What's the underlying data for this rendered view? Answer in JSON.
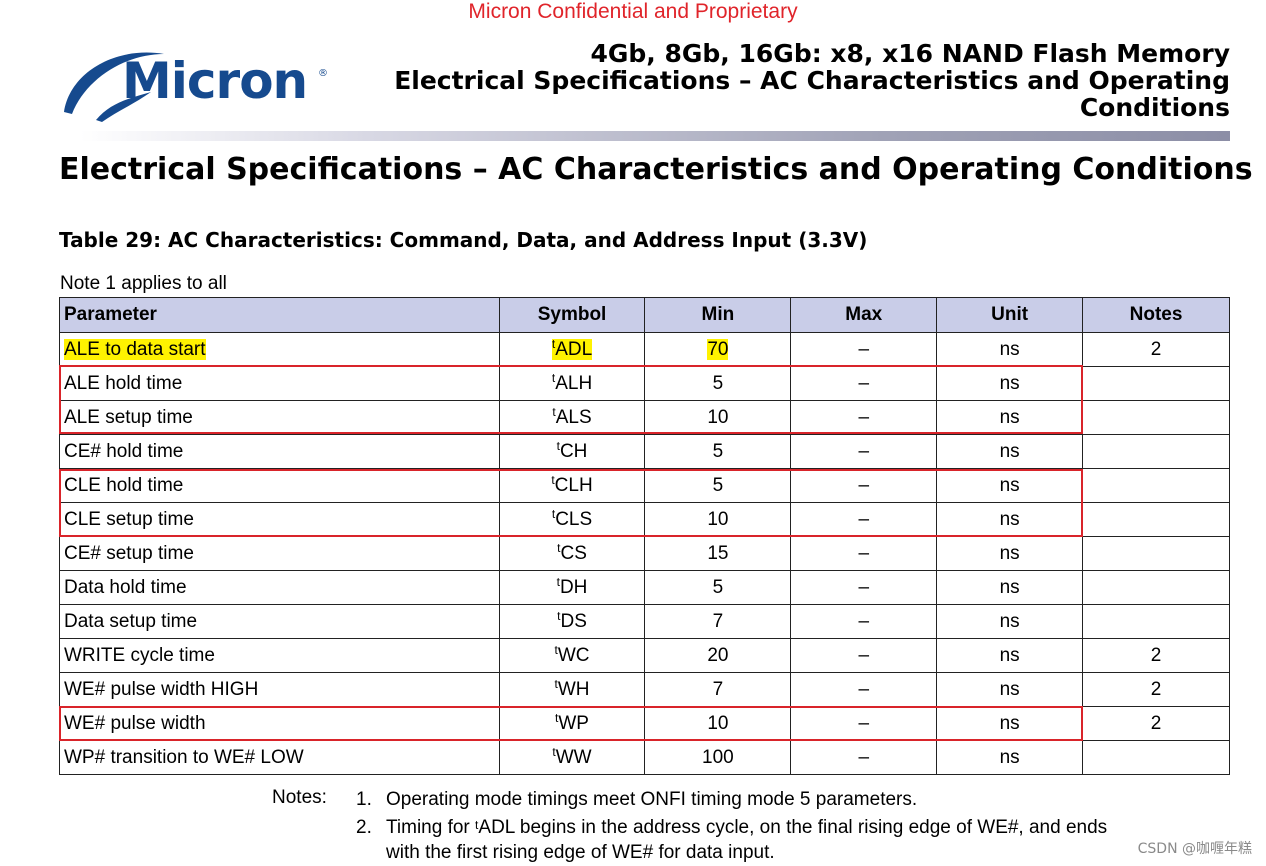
{
  "confidential": "Micron Confidential and Proprietary",
  "logo": {
    "text": "Micron",
    "trademark": "®"
  },
  "header": {
    "line1": "4Gb, 8Gb, 16Gb: x8, x16 NAND Flash Memory",
    "line2": "Electrical Specifications – AC Characteristics and Operating",
    "line3": "Conditions"
  },
  "section_title": "Electrical Specifications – AC Characteristics and Operating Conditions",
  "table_caption": "Table 29: AC Characteristics: Command, Data, and Address Input (3.3V)",
  "applies_note": "Note 1 applies to all",
  "table": {
    "headers": {
      "parameter": "Parameter",
      "symbol": "Symbol",
      "min": "Min",
      "max": "Max",
      "unit": "Unit",
      "notes": "Notes"
    },
    "rows": [
      {
        "parameter": "ALE to data start",
        "sym_prefix": "t",
        "sym": "ADL",
        "min": "70",
        "max": "–",
        "unit": "ns",
        "notes": "2",
        "highlight": true
      },
      {
        "parameter": "ALE hold time",
        "sym_prefix": "t",
        "sym": "ALH",
        "min": "5",
        "max": "–",
        "unit": "ns",
        "notes": ""
      },
      {
        "parameter": "ALE setup time",
        "sym_prefix": "t",
        "sym": "ALS",
        "min": "10",
        "max": "–",
        "unit": "ns",
        "notes": ""
      },
      {
        "parameter": "CE# hold time",
        "sym_prefix": "t",
        "sym": "CH",
        "min": "5",
        "max": "–",
        "unit": "ns",
        "notes": ""
      },
      {
        "parameter": "CLE hold time",
        "sym_prefix": "t",
        "sym": "CLH",
        "min": "5",
        "max": "–",
        "unit": "ns",
        "notes": ""
      },
      {
        "parameter": "CLE setup time",
        "sym_prefix": "t",
        "sym": "CLS",
        "min": "10",
        "max": "–",
        "unit": "ns",
        "notes": ""
      },
      {
        "parameter": "CE# setup time",
        "sym_prefix": "t",
        "sym": "CS",
        "min": "15",
        "max": "–",
        "unit": "ns",
        "notes": ""
      },
      {
        "parameter": "Data hold time",
        "sym_prefix": "t",
        "sym": "DH",
        "min": "5",
        "max": "–",
        "unit": "ns",
        "notes": ""
      },
      {
        "parameter": "Data setup time",
        "sym_prefix": "t",
        "sym": "DS",
        "min": "7",
        "max": "–",
        "unit": "ns",
        "notes": ""
      },
      {
        "parameter": "WRITE cycle time",
        "sym_prefix": "t",
        "sym": "WC",
        "min": "20",
        "max": "–",
        "unit": "ns",
        "notes": "2"
      },
      {
        "parameter": "WE# pulse width HIGH",
        "sym_prefix": "t",
        "sym": "WH",
        "min": "7",
        "max": "–",
        "unit": "ns",
        "notes": "2"
      },
      {
        "parameter": "WE# pulse width",
        "sym_prefix": "t",
        "sym": "WP",
        "min": "10",
        "max": "–",
        "unit": "ns",
        "notes": "2"
      },
      {
        "parameter": "WP# transition to WE# LOW",
        "sym_prefix": "t",
        "sym": "WW",
        "min": "100",
        "max": "–",
        "unit": "ns",
        "notes": ""
      }
    ]
  },
  "notes": {
    "label": "Notes:",
    "items": [
      {
        "num": "1.",
        "text": "Operating mode timings meet ONFI timing mode 5 parameters."
      },
      {
        "num": "2.",
        "text_before": "Timing for ",
        "sup": "t",
        "text_after": "ADL begins in the address cycle, on the final rising edge of WE#, and ends",
        "continuation": "with the first rising edge of WE# for data input."
      }
    ]
  },
  "watermark": "CSDN @咖喱年糕",
  "colors": {
    "confidential": "#e0242a",
    "logo": "#164a8e",
    "table_header": "#c9cde8",
    "highlight": "#fff200",
    "box": "#d9242a"
  }
}
